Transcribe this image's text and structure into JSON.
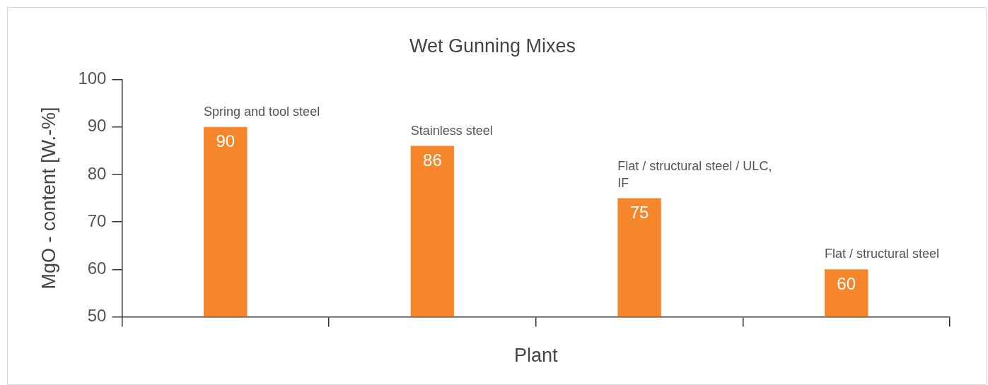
{
  "chart_data": {
    "type": "bar",
    "title": "Wet Gunning Mixes",
    "xlabel": "Plant",
    "ylabel": "MgO - content [W.-%]",
    "categories": [
      "Spring and tool steel",
      "Stainless steel",
      "Flat / structural steel / ULC, IF",
      "Flat / structural steel"
    ],
    "values": [
      90,
      86,
      75,
      60
    ],
    "color": "#f5862c",
    "ylim": [
      50,
      100
    ],
    "yticks": [
      50,
      60,
      70,
      80,
      90,
      100
    ],
    "grid": false,
    "legend": false,
    "data_labels": true
  }
}
